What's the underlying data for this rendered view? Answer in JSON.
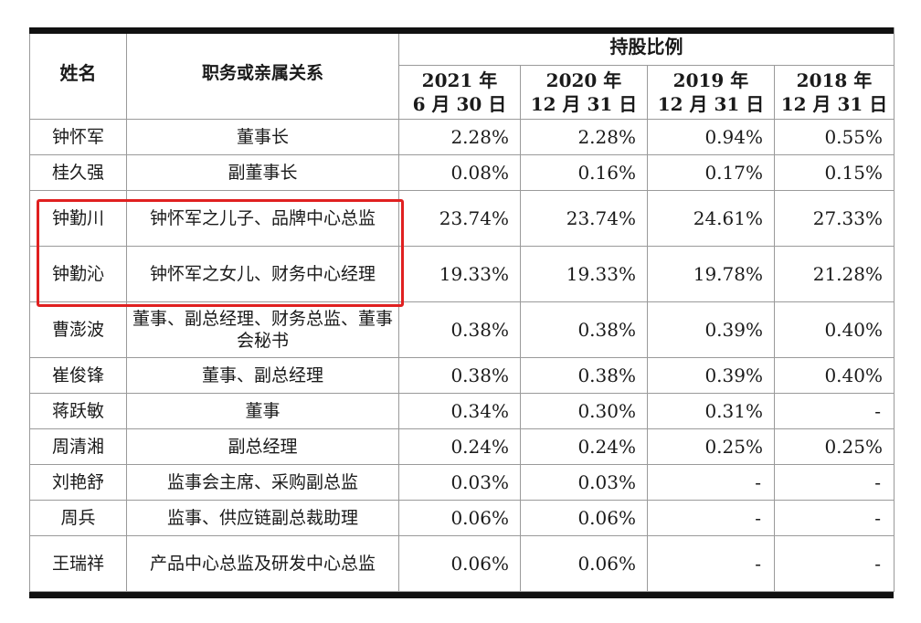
{
  "header": {
    "name": "姓名",
    "relation": "职务或亲属关系",
    "group": "持股比例",
    "dates": [
      {
        "line1": "2021 年",
        "line2": "6 月 30 日"
      },
      {
        "line1": "2020 年",
        "line2": "12 月 31 日"
      },
      {
        "line1": "2019 年",
        "line2": "12 月 31 日"
      },
      {
        "line1": "2018 年",
        "line2": "12 月 31 日"
      }
    ]
  },
  "rows": [
    {
      "name": "钟怀军",
      "relation": "董事长",
      "v": [
        "2.28%",
        "2.28%",
        "0.94%",
        "0.55%"
      ]
    },
    {
      "name": "桂久强",
      "relation": "副董事长",
      "v": [
        "0.08%",
        "0.16%",
        "0.17%",
        "0.15%"
      ]
    },
    {
      "name": "钟勤川",
      "relation": "钟怀军之儿子、品牌中心总监",
      "v": [
        "23.74%",
        "23.74%",
        "24.61%",
        "27.33%"
      ]
    },
    {
      "name": "钟勤沁",
      "relation": "钟怀军之女儿、财务中心经理",
      "v": [
        "19.33%",
        "19.33%",
        "19.78%",
        "21.28%"
      ]
    },
    {
      "name": "曹澎波",
      "relation": "董事、副总经理、财务总监、董事会秘书",
      "v": [
        "0.38%",
        "0.38%",
        "0.39%",
        "0.40%"
      ]
    },
    {
      "name": "崔俊锋",
      "relation": "董事、副总经理",
      "v": [
        "0.38%",
        "0.38%",
        "0.39%",
        "0.40%"
      ]
    },
    {
      "name": "蒋跃敏",
      "relation": "董事",
      "v": [
        "0.34%",
        "0.30%",
        "0.31%",
        "-"
      ]
    },
    {
      "name": "周清湘",
      "relation": "副总经理",
      "v": [
        "0.24%",
        "0.24%",
        "0.25%",
        "0.25%"
      ]
    },
    {
      "name": "刘艳舒",
      "relation": "监事会主席、采购副总监",
      "v": [
        "0.03%",
        "0.03%",
        "-",
        "-"
      ]
    },
    {
      "name": "周兵",
      "relation": "监事、供应链副总裁助理",
      "v": [
        "0.06%",
        "0.06%",
        "-",
        "-"
      ]
    },
    {
      "name": "王瑞祥",
      "relation": "产品中心总监及研发中心总监",
      "v": [
        "0.06%",
        "0.06%",
        "-",
        "-"
      ]
    }
  ],
  "highlight_color": "#e02020"
}
